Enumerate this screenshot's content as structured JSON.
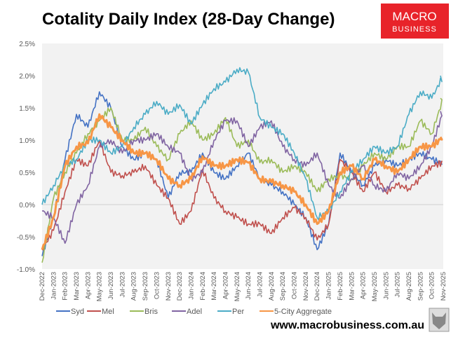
{
  "chart_data": {
    "type": "line",
    "title": "Cotality Daily Index (28-Day Change)",
    "xlabel": "",
    "ylabel": "",
    "ylim": [
      -1.0,
      2.5
    ],
    "y_ticks": [
      "2.5%",
      "2.0%",
      "1.5%",
      "1.0%",
      "0.5%",
      "0.0%",
      "-0.5%",
      "-1.0%"
    ],
    "y_tick_values": [
      2.5,
      2.0,
      1.5,
      1.0,
      0.5,
      0.0,
      -0.5,
      -1.0
    ],
    "grid": false,
    "zero_line": true,
    "legend_placement": "bottom",
    "categories": [
      "Dec-2022",
      "Jan-2023",
      "Feb-2023",
      "Mar-2023",
      "Apr-2023",
      "May-2023",
      "Jun-2023",
      "Jul-2023",
      "Aug-2023",
      "Sep-2023",
      "Oct-2023",
      "Nov-2023",
      "Dec-2023",
      "Jan-2024",
      "Feb-2024",
      "Mar-2024",
      "Apr-2024",
      "May-2024",
      "Jun-2024",
      "Jul-2024",
      "Aug-2024",
      "Sep-2024",
      "Oct-2024",
      "Nov-2024",
      "Dec-2024",
      "Jan-2025",
      "Feb-2025",
      "Mar-2025",
      "Apr-2025",
      "May-2025",
      "Jun-2025",
      "Jul-2025",
      "Aug-2025",
      "Sep-2025",
      "Oct-2025",
      "Nov-2025"
    ],
    "series": [
      {
        "name": "Syd",
        "color": "#4472c4",
        "values": [
          -0.8,
          -0.2,
          0.7,
          1.4,
          1.2,
          1.75,
          1.5,
          0.9,
          0.7,
          0.8,
          0.7,
          0.1,
          0.5,
          0.5,
          0.8,
          0.5,
          0.4,
          0.6,
          0.8,
          0.4,
          0.3,
          0.2,
          0.0,
          -0.2,
          -0.7,
          -0.3,
          0.8,
          0.5,
          0.3,
          0.6,
          0.7,
          0.6,
          0.7,
          0.8,
          0.7,
          0.65
        ]
      },
      {
        "name": "Mel",
        "color": "#c0504d",
        "values": [
          -0.7,
          -0.4,
          0.2,
          0.7,
          0.6,
          1.0,
          0.5,
          0.45,
          0.5,
          0.6,
          0.3,
          0.1,
          -0.3,
          -0.1,
          0.55,
          0.1,
          -0.1,
          -0.2,
          -0.3,
          -0.3,
          -0.45,
          -0.2,
          -0.05,
          -0.2,
          -0.55,
          -0.3,
          0.7,
          0.5,
          0.2,
          0.5,
          0.2,
          0.3,
          0.25,
          0.4,
          0.6,
          0.65
        ]
      },
      {
        "name": "Bris",
        "color": "#9bbb59",
        "values": [
          -0.9,
          0.1,
          0.5,
          0.8,
          1.1,
          1.3,
          1.5,
          1.0,
          1.0,
          1.2,
          0.9,
          0.7,
          1.1,
          1.3,
          1.0,
          1.1,
          1.35,
          0.9,
          1.0,
          0.65,
          0.7,
          0.5,
          0.6,
          0.5,
          0.2,
          0.4,
          0.45,
          0.4,
          0.6,
          0.8,
          0.7,
          0.9,
          0.9,
          1.3,
          1.1,
          1.65
        ]
      },
      {
        "name": "Adel",
        "color": "#8064a2",
        "values": [
          -0.1,
          -0.2,
          -0.6,
          0.0,
          0.3,
          0.9,
          1.0,
          0.8,
          1.0,
          1.0,
          1.1,
          0.9,
          0.8,
          0.4,
          0.5,
          1.0,
          1.3,
          1.3,
          0.9,
          1.2,
          1.3,
          0.9,
          0.7,
          0.6,
          0.8,
          0.3,
          0.1,
          0.4,
          0.6,
          0.3,
          0.2,
          0.5,
          0.4,
          0.6,
          0.9,
          1.45
        ]
      },
      {
        "name": "Per",
        "color": "#4bacc6",
        "values": [
          0.0,
          0.3,
          0.6,
          0.7,
          1.0,
          1.0,
          0.8,
          0.9,
          1.2,
          1.4,
          1.6,
          1.4,
          1.55,
          1.25,
          1.55,
          1.8,
          1.9,
          2.1,
          2.05,
          1.35,
          1.2,
          1.1,
          0.8,
          0.4,
          -0.2,
          -0.1,
          0.2,
          0.5,
          0.7,
          0.9,
          0.8,
          0.9,
          1.4,
          1.75,
          1.65,
          2.0
        ]
      },
      {
        "name": "5-City Aggregate",
        "color": "#f79646",
        "values": [
          -0.7,
          -0.2,
          0.6,
          0.9,
          0.95,
          1.4,
          1.2,
          1.0,
          0.8,
          0.8,
          0.7,
          0.4,
          0.3,
          0.4,
          0.75,
          0.6,
          0.6,
          0.7,
          0.65,
          0.4,
          0.35,
          0.3,
          0.2,
          0.0,
          -0.3,
          -0.1,
          0.5,
          0.6,
          0.4,
          0.7,
          0.6,
          0.5,
          0.7,
          0.9,
          0.9,
          1.05
        ]
      }
    ]
  },
  "logo": {
    "line1": "MACRO",
    "line2": "BUSINESS",
    "color": "#e8232a"
  },
  "footer": {
    "url": "www.macrobusiness.com.au",
    "wolf_icon": "wolf-icon"
  }
}
